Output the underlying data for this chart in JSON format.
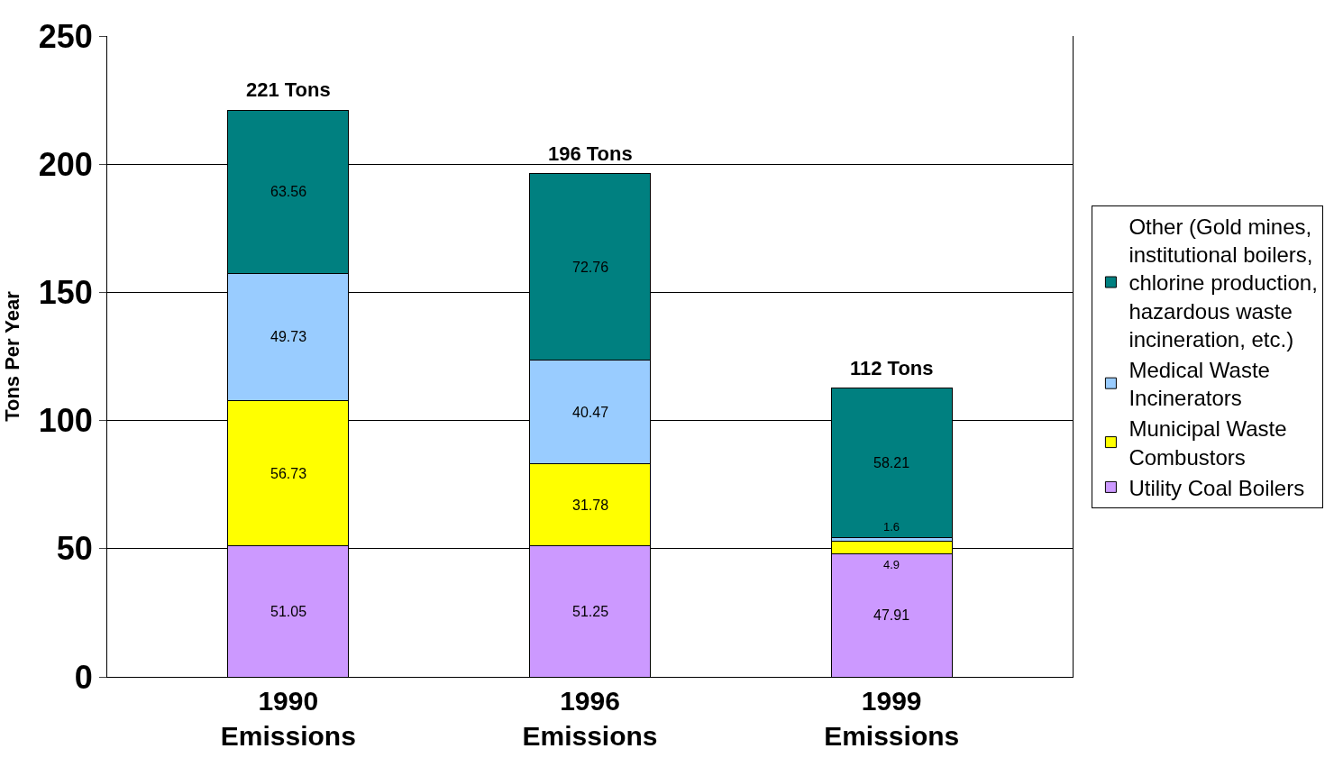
{
  "chart_data": {
    "type": "bar",
    "stacked": true,
    "ylabel": "Tons Per Year",
    "categories": [
      "1990 Emissions",
      "1996 Emissions",
      "1999 Emissions"
    ],
    "series": [
      {
        "name": "Utility Coal Boilers",
        "color": "#cc99ff",
        "values": [
          51.05,
          51.25,
          47.91
        ]
      },
      {
        "name": "Municipal Waste Combustors",
        "color": "#ffff00",
        "values": [
          56.73,
          31.78,
          4.9
        ]
      },
      {
        "name": "Medical Waste Incinerators",
        "color": "#99ccff",
        "values": [
          49.73,
          40.47,
          1.6
        ]
      },
      {
        "name": "Other (Gold mines, institutional boilers, chlorine production, hazardous waste incineration, etc.)",
        "color": "#008080",
        "values": [
          63.56,
          72.76,
          58.21
        ]
      }
    ],
    "totals": [
      "221 Tons",
      "196 Tons",
      "112 Tons"
    ],
    "data_labels": true,
    "ylim": [
      0,
      250
    ],
    "yticks": [
      0,
      50,
      100,
      150,
      200,
      250
    ],
    "grid": "y",
    "legend": "right"
  }
}
